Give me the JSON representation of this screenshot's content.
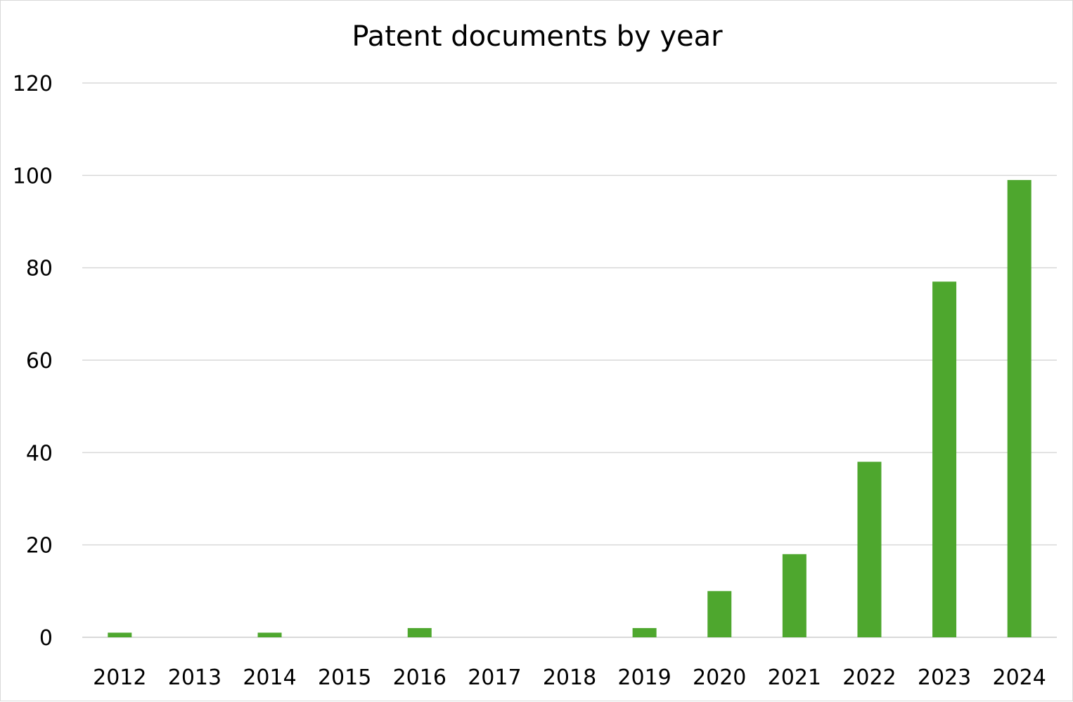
{
  "chart_data": {
    "type": "bar",
    "title": "Patent documents by year",
    "categories": [
      "2012",
      "2013",
      "2014",
      "2015",
      "2016",
      "2017",
      "2018",
      "2019",
      "2020",
      "2021",
      "2022",
      "2023",
      "2024"
    ],
    "values": [
      1,
      0,
      1,
      0,
      2,
      0,
      0,
      2,
      10,
      18,
      38,
      77,
      99
    ],
    "xlabel": "",
    "ylabel": "",
    "ylim": [
      0,
      120
    ],
    "yticks": [
      "0",
      "20",
      "40",
      "60",
      "80",
      "100",
      "120"
    ],
    "grid": true,
    "legend": "none",
    "bar_color": "#4ea72e"
  }
}
